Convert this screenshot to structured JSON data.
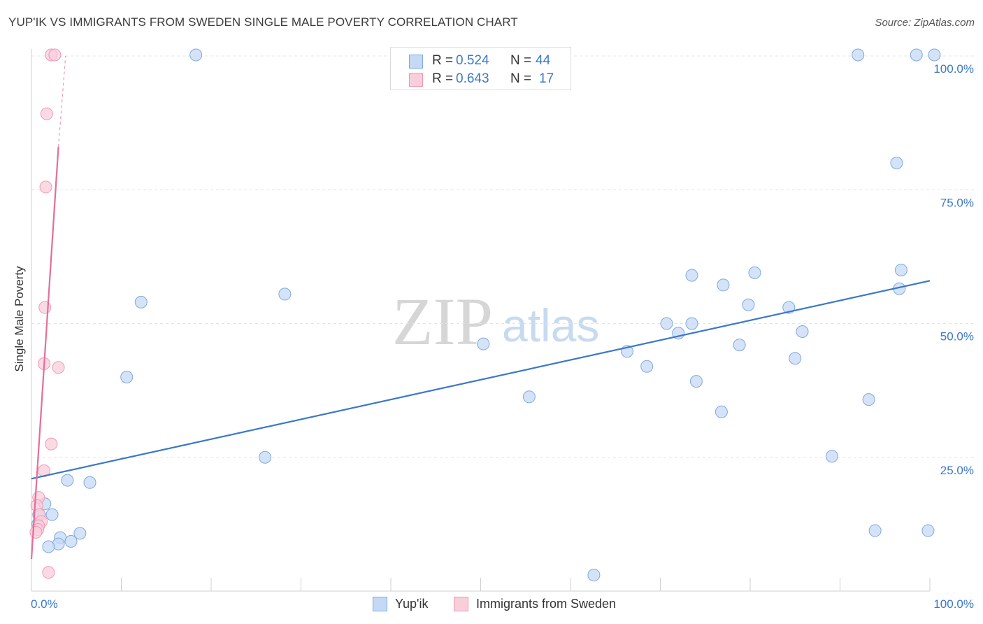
{
  "title": "YUP'IK VS IMMIGRANTS FROM SWEDEN SINGLE MALE POVERTY CORRELATION CHART",
  "source": "Source: ZipAtlas.com",
  "watermark": {
    "zip": "ZIP",
    "atlas": "atlas"
  },
  "legend": {
    "r_label": "R =",
    "n_label": "N =",
    "rows": [
      {
        "r": "0.524",
        "n": "44",
        "fill": "#c5d9f5",
        "stroke": "#7fa9e0"
      },
      {
        "r": "0.643",
        "n": "17",
        "fill": "#f9cedb",
        "stroke": "#ee9ab3"
      }
    ]
  },
  "bottom_legend": [
    {
      "label": "Yup'ik",
      "fill": "#c5d9f5",
      "stroke": "#7fa9e0"
    },
    {
      "label": "Immigrants from Sweden",
      "fill": "#f9cedb",
      "stroke": "#ee9ab3"
    }
  ],
  "chart_data": {
    "type": "scatter",
    "ylabel": "Single Male Poverty",
    "xlabel": "",
    "xlim": [
      0,
      100
    ],
    "ylim": [
      0,
      100
    ],
    "x_tick_labels": [
      {
        "value": 0,
        "label": "0.0%"
      },
      {
        "value": 100,
        "label": "100.0%"
      }
    ],
    "y_tick_labels": [
      {
        "value": 25,
        "label": "25.0%"
      },
      {
        "value": 50,
        "label": "50.0%"
      },
      {
        "value": 75,
        "label": "75.0%"
      },
      {
        "value": 100,
        "label": "100.0%"
      }
    ],
    "grid": true,
    "series": [
      {
        "name": "Yup'ik",
        "color": "#3a78c8",
        "fill": "#c5d9f5",
        "stroke": "#7fa9e0",
        "points": [
          [
            18.3,
            100.2
          ],
          [
            92.0,
            100.2
          ],
          [
            98.5,
            100.2
          ],
          [
            100.5,
            100.2
          ],
          [
            96.3,
            80.0
          ],
          [
            96.8,
            60.0
          ],
          [
            96.6,
            56.5
          ],
          [
            73.5,
            59.0
          ],
          [
            80.5,
            59.5
          ],
          [
            77.0,
            57.2
          ],
          [
            79.8,
            53.5
          ],
          [
            84.3,
            53.0
          ],
          [
            85.8,
            48.5
          ],
          [
            70.7,
            50.0
          ],
          [
            73.5,
            50.0
          ],
          [
            72.0,
            48.2
          ],
          [
            66.3,
            44.8
          ],
          [
            78.8,
            46.0
          ],
          [
            85.0,
            43.5
          ],
          [
            68.5,
            42.0
          ],
          [
            74.0,
            39.2
          ],
          [
            76.8,
            33.5
          ],
          [
            93.2,
            35.8
          ],
          [
            89.1,
            25.2
          ],
          [
            50.3,
            46.2
          ],
          [
            55.4,
            36.3
          ],
          [
            28.2,
            55.5
          ],
          [
            12.2,
            54.0
          ],
          [
            10.6,
            40.0
          ],
          [
            26.0,
            25.0
          ],
          [
            6.5,
            20.3
          ],
          [
            4.0,
            20.7
          ],
          [
            2.3,
            14.3
          ],
          [
            1.5,
            16.3
          ],
          [
            0.8,
            14.3
          ],
          [
            0.7,
            12.5
          ],
          [
            5.4,
            10.8
          ],
          [
            3.2,
            10.0
          ],
          [
            4.4,
            9.3
          ],
          [
            3.0,
            8.8
          ],
          [
            1.9,
            8.3
          ],
          [
            62.6,
            3.0
          ],
          [
            93.9,
            11.3
          ],
          [
            99.8,
            11.3
          ]
        ],
        "trend": {
          "x": [
            0,
            100
          ],
          "y": [
            21.0,
            58.0
          ]
        }
      },
      {
        "name": "Immigrants from Sweden",
        "color": "#e56e98",
        "fill": "#f9cedb",
        "stroke": "#ee9ab3",
        "points": [
          [
            2.2,
            100.2
          ],
          [
            2.6,
            100.2
          ],
          [
            1.7,
            89.2
          ],
          [
            1.6,
            75.5
          ],
          [
            1.5,
            53.0
          ],
          [
            1.4,
            42.5
          ],
          [
            3.0,
            41.8
          ],
          [
            2.2,
            27.5
          ],
          [
            1.4,
            22.5
          ],
          [
            0.8,
            17.5
          ],
          [
            0.6,
            16.0
          ],
          [
            0.9,
            14.3
          ],
          [
            1.1,
            13.0
          ],
          [
            0.8,
            12.2
          ],
          [
            0.7,
            11.5
          ],
          [
            0.5,
            11.0
          ],
          [
            1.9,
            3.5
          ]
        ],
        "trend": {
          "x": [
            0,
            3.0
          ],
          "y": [
            6.0,
            83.0
          ]
        },
        "trend_dashed": {
          "x": [
            3.0,
            3.8
          ],
          "y": [
            83.0,
            100.0
          ]
        }
      }
    ]
  }
}
